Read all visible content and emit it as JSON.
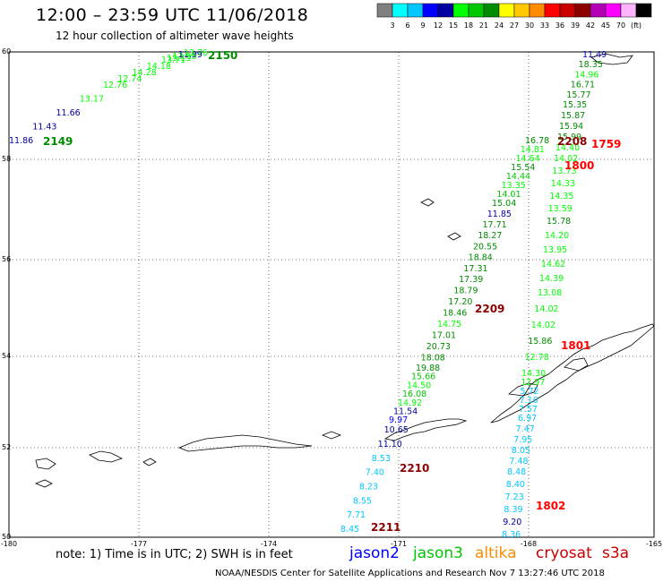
{
  "title": "12:00 – 23:59 UTC 11/06/2018",
  "subtitle": "12 hour collection of altimeter wave heights",
  "scale": {
    "colors": [
      "#808080",
      "#00ffff",
      "#00c8ff",
      "#0000ff",
      "#0000a0",
      "#00ff00",
      "#00c800",
      "#008c00",
      "#ffff00",
      "#ffc800",
      "#ff8c00",
      "#ff0000",
      "#c80000",
      "#8c0000",
      "#b400b4",
      "#ff00ff",
      "#ffb4ff",
      "#000000"
    ],
    "labels": [
      "3",
      "6",
      "9",
      "12",
      "15",
      "18",
      "21",
      "24",
      "27",
      "30",
      "33",
      "36",
      "39",
      "42",
      "45",
      "70",
      "(ft)"
    ]
  },
  "axes": {
    "lat_labels": [
      "60",
      "58",
      "56",
      "54",
      "52",
      "50"
    ],
    "lon_labels": [
      "-180",
      "-177",
      "-174",
      "-171",
      "-168",
      "-165"
    ]
  },
  "time_labels": [
    {
      "text": "2150",
      "color": "#008c00"
    },
    {
      "text": "2149",
      "color": "#008c00"
    },
    {
      "text": "2208",
      "color": "#8c0000"
    },
    {
      "text": "1759",
      "color": "#ff0000"
    },
    {
      "text": "1800",
      "color": "#ff0000"
    },
    {
      "text": "2209",
      "color": "#8c0000"
    },
    {
      "text": "1801",
      "color": "#ff0000"
    },
    {
      "text": "2210",
      "color": "#8c0000"
    },
    {
      "text": "1802",
      "color": "#ff0000"
    },
    {
      "text": "2211",
      "color": "#8c0000"
    }
  ],
  "track_nw": [
    "11.86",
    "11.43",
    "11.66",
    "13.17",
    "12.76",
    "12.74",
    "14.28",
    "14.18",
    "13.71",
    "15.15",
    "13.98",
    "11.99",
    "13.76"
  ],
  "track_nw_colors": [
    "#0000a0",
    "#0000a0",
    "#0000a0",
    "#00ff00",
    "#00ff00",
    "#00ff00",
    "#00ff00",
    "#00ff00",
    "#00ff00",
    "#00ff00",
    "#00ff00",
    "#0000a0",
    "#00ff00"
  ],
  "track_a": [
    "16.78",
    "14.81",
    "14.64",
    "15.54",
    "14.44",
    "13.35",
    "14.01",
    "15.04",
    "11.85",
    "17.71",
    "18.27",
    "20.55",
    "18.84",
    "17.31",
    "17.39",
    "18.79",
    "17.20",
    "18.46",
    "14.75",
    "17.01",
    "20.73",
    "18.08",
    "19.88",
    "15.66",
    "14.50",
    "16.08",
    "14.92",
    "11.54",
    "9.97",
    "10.65",
    "11.10",
    "8.53",
    "7.40",
    "8.23",
    "8.55",
    "7.71",
    "8.45"
  ],
  "track_a_colors": [
    "#008c00",
    "#00ff00",
    "#00ff00",
    "#008c00",
    "#00c800",
    "#00ff00",
    "#00c800",
    "#008c00",
    "#0000a0",
    "#008c00",
    "#008c00",
    "#008c00",
    "#008c00",
    "#008c00",
    "#008c00",
    "#008c00",
    "#008c00",
    "#008c00",
    "#00ff00",
    "#008c00",
    "#008c00",
    "#008c00",
    "#008c00",
    "#00c800",
    "#00ff00",
    "#00c800",
    "#00ff00",
    "#0000a0",
    "#0000ff",
    "#0000a0",
    "#0000a0",
    "#00c8ff",
    "#00c8ff",
    "#00c8ff",
    "#00c8ff",
    "#00c8ff",
    "#00c8ff"
  ],
  "track_b": [
    "11.49",
    "18.35",
    "14.96",
    "16.71",
    "15.77",
    "15.35",
    "15.87",
    "15.94",
    "15.99",
    "14.40",
    "14.02",
    "13.73",
    "14.33",
    "14.35",
    "13.59",
    "15.78",
    "14.20",
    "13.95",
    "14.62",
    "14.39",
    "13.08",
    "14.02",
    "14.02",
    "15.86",
    "12.78",
    "14.30",
    "12.97",
    "5.72",
    "7.10",
    "7.57",
    "6.97",
    "7.47",
    "7.95",
    "8.05",
    "7.48",
    "8.48",
    "8.40",
    "7.23",
    "8.39",
    "9.20",
    "8.36"
  ],
  "track_b_colors": [
    "#0000a0",
    "#008c00",
    "#00ff00",
    "#008c00",
    "#008c00",
    "#008c00",
    "#008c00",
    "#008c00",
    "#008c00",
    "#00ff00",
    "#00ff00",
    "#00ff00",
    "#00ff00",
    "#00ff00",
    "#00ff00",
    "#008c00",
    "#00ff00",
    "#00ff00",
    "#00ff00",
    "#00ff00",
    "#00ff00",
    "#00ff00",
    "#00ff00",
    "#008c00",
    "#00ff00",
    "#00ff00",
    "#00ff00",
    "#00c8ff",
    "#00c8ff",
    "#00c8ff",
    "#00c8ff",
    "#00c8ff",
    "#00c8ff",
    "#00c8ff",
    "#00c8ff",
    "#00c8ff",
    "#00c8ff",
    "#00c8ff",
    "#00c8ff",
    "#0000a0",
    "#00c8ff"
  ],
  "note": "note:  1) Time is in UTC;  2) SWH is in feet",
  "legend": [
    {
      "name": "jason2",
      "color": "#0000ff"
    },
    {
      "name": "jason3",
      "color": "#00c800"
    },
    {
      "name": "altika",
      "color": "#ff8c00"
    },
    {
      "name": "cryosat",
      "color": "#c80000"
    },
    {
      "name": "s3a",
      "color": "#c80000"
    }
  ],
  "credit": "NOAA/NESDIS Center for Satellite Applications and Research    Nov  7 13:27:46 UTC 2018"
}
